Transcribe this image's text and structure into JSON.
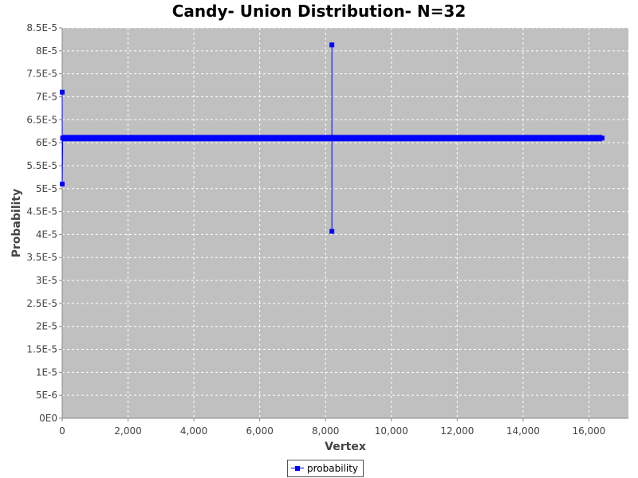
{
  "chart_data": {
    "type": "line",
    "title": "Candy- Union Distribution- N=32",
    "xlabel": "Vertex",
    "ylabel": "Probability",
    "xlim": [
      0,
      17200
    ],
    "ylim": [
      0,
      8.5e-05
    ],
    "x_ticks": [
      0,
      2000,
      4000,
      6000,
      8000,
      10000,
      12000,
      14000,
      16000
    ],
    "x_tick_labels": [
      "0",
      "2,000",
      "4,000",
      "6,000",
      "8,000",
      "10,000",
      "12,000",
      "14,000",
      "16,000"
    ],
    "y_ticks": [
      0,
      5e-06,
      1e-05,
      1.5e-05,
      2e-05,
      2.5e-05,
      3e-05,
      3.5e-05,
      4e-05,
      4.5e-05,
      5e-05,
      5.5e-05,
      6e-05,
      6.5e-05,
      7e-05,
      7.5e-05,
      8e-05,
      8.5e-05
    ],
    "y_tick_labels": [
      "0E0",
      "5E-6",
      "1E-5",
      "1.5E-5",
      "2E-5",
      "2.5E-5",
      "3E-5",
      "3.5E-5",
      "4E-5",
      "4.5E-5",
      "5E-5",
      "5.5E-5",
      "6E-5",
      "6.5E-5",
      "7E-5",
      "7.5E-5",
      "8E-5",
      "8.5E-5"
    ],
    "grid": true,
    "legend_position": "bottom-center",
    "series": [
      {
        "name": "probability",
        "color": "#0000ff",
        "points": [
          [
            0,
            7.1e-05
          ],
          [
            0,
            5.1e-05
          ],
          [
            16,
            6.1e-05
          ],
          [
            16,
            6.1e-05
          ],
          [
            8192,
            6.1e-05
          ],
          [
            8192,
            8.13e-05
          ],
          [
            8192,
            4.07e-05
          ],
          [
            8192,
            6.1e-05
          ],
          [
            16400,
            6.1e-05
          ]
        ]
      }
    ]
  }
}
